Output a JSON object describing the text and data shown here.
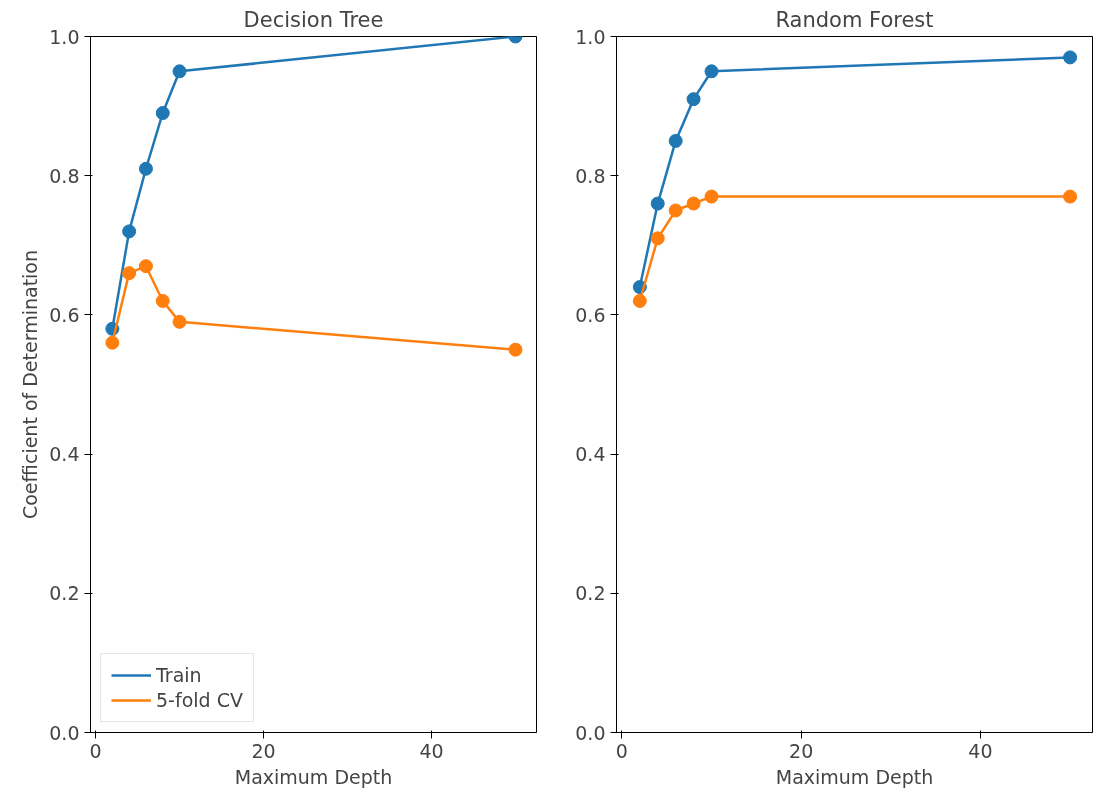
{
  "chart_data": [
    {
      "type": "line",
      "title": "Decision Tree",
      "xlabel": "Maximum Depth",
      "ylabel": "Coefficient of Determination",
      "x": [
        2,
        4,
        6,
        8,
        10,
        50
      ],
      "xlim": [
        -0.6,
        52.5
      ],
      "ylim": [
        0,
        1
      ],
      "xticks": [
        0,
        20,
        40
      ],
      "yticks": [
        {
          "value": 0,
          "label": "0.0"
        },
        {
          "value": 0.2,
          "label": "0.2"
        },
        {
          "value": 0.4,
          "label": "0.4"
        },
        {
          "value": 0.6,
          "label": "0.6"
        },
        {
          "value": 0.8,
          "label": "0.8"
        },
        {
          "value": 1,
          "label": "1.0"
        }
      ],
      "marker": "circle",
      "grid": false,
      "legend": "bottom left",
      "series": [
        {
          "name": "Train",
          "color": "#1f77b4",
          "values": [
            0.58,
            0.72,
            0.81,
            0.89,
            0.95,
            1.0
          ]
        },
        {
          "name": "5-fold CV",
          "color": "#ff7f0e",
          "values": [
            0.56,
            0.66,
            0.67,
            0.62,
            0.59,
            0.55
          ]
        }
      ]
    },
    {
      "type": "line",
      "title": "Random Forest",
      "xlabel": "Maximum Depth",
      "x": [
        2,
        4,
        6,
        8,
        10,
        50
      ],
      "xlim": [
        -0.6,
        52.5
      ],
      "ylim": [
        0,
        1
      ],
      "xticks": [
        0,
        20,
        40
      ],
      "yticks": [
        {
          "value": 0,
          "label": "0.0"
        },
        {
          "value": 0.2,
          "label": "0.2"
        },
        {
          "value": 0.4,
          "label": "0.4"
        },
        {
          "value": 0.6,
          "label": "0.6"
        },
        {
          "value": 0.8,
          "label": "0.8"
        },
        {
          "value": 1,
          "label": "1.0"
        }
      ],
      "marker": "circle",
      "grid": false,
      "series": [
        {
          "color": "#1f77b4",
          "values": [
            0.64,
            0.76,
            0.85,
            0.91,
            0.95,
            0.97
          ]
        },
        {
          "color": "#ff7f0e",
          "values": [
            0.62,
            0.71,
            0.75,
            0.76,
            0.77,
            0.77
          ]
        }
      ]
    }
  ]
}
